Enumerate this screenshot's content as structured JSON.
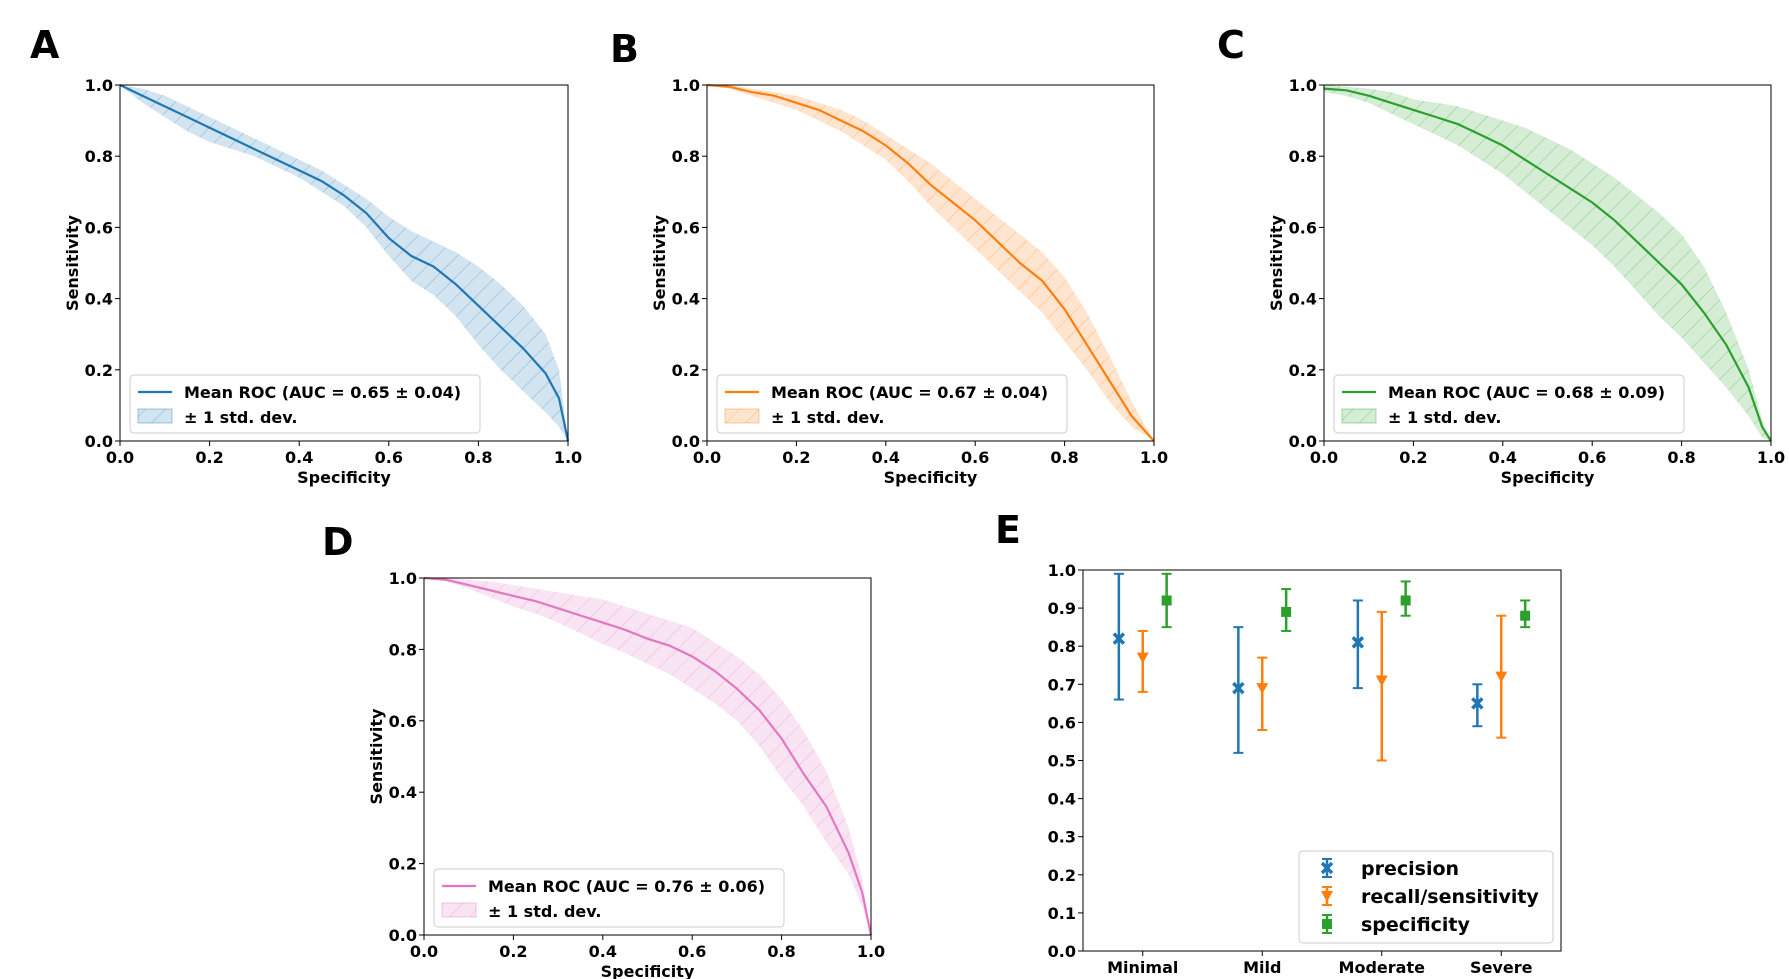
{
  "chart_data": [
    {
      "panel": "A",
      "type": "line",
      "xlabel": "Specificity",
      "ylabel": "Sensitivity",
      "xlim": [
        0,
        1
      ],
      "ylim": [
        0,
        1
      ],
      "xticks": [
        "0.0",
        "0.2",
        "0.4",
        "0.6",
        "0.8",
        "1.0"
      ],
      "yticks": [
        "0.0",
        "0.2",
        "0.4",
        "0.6",
        "0.8",
        "1.0"
      ],
      "grid": false,
      "legend_position": "lower-left",
      "color": "#1f77b4",
      "series": [
        {
          "name": "Mean ROC (AUC = 0.65 ± 0.04)",
          "x": [
            0,
            0.05,
            0.1,
            0.15,
            0.2,
            0.25,
            0.3,
            0.35,
            0.4,
            0.45,
            0.5,
            0.55,
            0.6,
            0.65,
            0.7,
            0.75,
            0.8,
            0.85,
            0.9,
            0.95,
            0.98,
            1.0
          ],
          "y": [
            1.0,
            0.97,
            0.94,
            0.91,
            0.88,
            0.85,
            0.82,
            0.79,
            0.76,
            0.73,
            0.69,
            0.64,
            0.57,
            0.52,
            0.49,
            0.44,
            0.38,
            0.32,
            0.26,
            0.19,
            0.12,
            0.0
          ],
          "std_label": "± 1 std. dev.",
          "upper": [
            1.0,
            0.99,
            0.97,
            0.94,
            0.91,
            0.88,
            0.85,
            0.82,
            0.79,
            0.76,
            0.72,
            0.68,
            0.63,
            0.59,
            0.56,
            0.53,
            0.49,
            0.44,
            0.38,
            0.3,
            0.2,
            0.0
          ],
          "lower": [
            1.0,
            0.95,
            0.91,
            0.87,
            0.84,
            0.82,
            0.8,
            0.77,
            0.74,
            0.7,
            0.66,
            0.6,
            0.52,
            0.45,
            0.41,
            0.35,
            0.27,
            0.2,
            0.14,
            0.08,
            0.04,
            0.0
          ]
        }
      ]
    },
    {
      "panel": "B",
      "type": "line",
      "xlabel": "Specificity",
      "ylabel": "Sensitivity",
      "xlim": [
        0,
        1
      ],
      "ylim": [
        0,
        1
      ],
      "xticks": [
        "0.0",
        "0.2",
        "0.4",
        "0.6",
        "0.8",
        "1.0"
      ],
      "yticks": [
        "0.0",
        "0.2",
        "0.4",
        "0.6",
        "0.8",
        "1.0"
      ],
      "grid": false,
      "legend_position": "lower-left",
      "color": "#ff7f0e",
      "series": [
        {
          "name": "Mean ROC (AUC = 0.67 ± 0.04)",
          "x": [
            0,
            0.05,
            0.1,
            0.15,
            0.2,
            0.25,
            0.3,
            0.35,
            0.4,
            0.45,
            0.5,
            0.55,
            0.6,
            0.65,
            0.7,
            0.75,
            0.8,
            0.85,
            0.9,
            0.95,
            1.0
          ],
          "y": [
            1.0,
            0.995,
            0.98,
            0.97,
            0.95,
            0.93,
            0.9,
            0.87,
            0.83,
            0.78,
            0.72,
            0.67,
            0.62,
            0.56,
            0.5,
            0.45,
            0.37,
            0.27,
            0.17,
            0.07,
            0.0
          ],
          "std_label": "± 1 std. dev.",
          "upper": [
            1.0,
            1.0,
            0.99,
            0.98,
            0.97,
            0.95,
            0.93,
            0.9,
            0.86,
            0.82,
            0.78,
            0.73,
            0.68,
            0.63,
            0.58,
            0.53,
            0.46,
            0.36,
            0.24,
            0.11,
            0.0
          ],
          "lower": [
            1.0,
            0.99,
            0.97,
            0.95,
            0.93,
            0.9,
            0.87,
            0.83,
            0.79,
            0.73,
            0.66,
            0.6,
            0.54,
            0.48,
            0.42,
            0.36,
            0.28,
            0.2,
            0.11,
            0.04,
            0.0
          ]
        }
      ]
    },
    {
      "panel": "C",
      "type": "line",
      "xlabel": "Specificity",
      "ylabel": "Sensitivity",
      "xlim": [
        0,
        1
      ],
      "ylim": [
        0,
        1
      ],
      "xticks": [
        "0.0",
        "0.2",
        "0.4",
        "0.6",
        "0.8",
        "1.0"
      ],
      "yticks": [
        "0.0",
        "0.2",
        "0.4",
        "0.6",
        "0.8",
        "1.0"
      ],
      "grid": false,
      "legend_position": "lower-left",
      "color": "#2ca02c",
      "series": [
        {
          "name": "Mean ROC (AUC = 0.68 ± 0.09)",
          "x": [
            0,
            0.05,
            0.1,
            0.15,
            0.2,
            0.25,
            0.3,
            0.35,
            0.4,
            0.45,
            0.5,
            0.55,
            0.6,
            0.65,
            0.7,
            0.75,
            0.8,
            0.85,
            0.9,
            0.95,
            0.98,
            1.0
          ],
          "y": [
            0.99,
            0.985,
            0.97,
            0.95,
            0.93,
            0.91,
            0.89,
            0.86,
            0.83,
            0.79,
            0.75,
            0.71,
            0.67,
            0.62,
            0.56,
            0.5,
            0.44,
            0.36,
            0.27,
            0.15,
            0.04,
            0.0
          ],
          "std_label": "± 1 std. dev.",
          "upper": [
            1.0,
            0.995,
            0.99,
            0.98,
            0.96,
            0.95,
            0.94,
            0.92,
            0.9,
            0.88,
            0.85,
            0.82,
            0.78,
            0.74,
            0.69,
            0.64,
            0.58,
            0.49,
            0.36,
            0.2,
            0.06,
            0.0
          ],
          "lower": [
            0.98,
            0.97,
            0.95,
            0.92,
            0.89,
            0.86,
            0.83,
            0.79,
            0.75,
            0.7,
            0.65,
            0.6,
            0.55,
            0.49,
            0.42,
            0.35,
            0.29,
            0.22,
            0.15,
            0.07,
            0.01,
            0.0
          ]
        }
      ]
    },
    {
      "panel": "D",
      "type": "line",
      "xlabel": "Specificity",
      "ylabel": "Sensitivity",
      "xlim": [
        0,
        1
      ],
      "ylim": [
        0,
        1
      ],
      "xticks": [
        "0.0",
        "0.2",
        "0.4",
        "0.6",
        "0.8",
        "1.0"
      ],
      "yticks": [
        "0.0",
        "0.2",
        "0.4",
        "0.6",
        "0.8",
        "1.0"
      ],
      "grid": false,
      "legend_position": "lower-left",
      "color": "#e377c2",
      "series": [
        {
          "name": "Mean ROC (AUC = 0.76 ± 0.06)",
          "x": [
            0,
            0.05,
            0.1,
            0.15,
            0.2,
            0.25,
            0.3,
            0.35,
            0.4,
            0.45,
            0.5,
            0.55,
            0.6,
            0.65,
            0.7,
            0.75,
            0.8,
            0.85,
            0.9,
            0.95,
            0.98,
            1.0
          ],
          "y": [
            1.0,
            0.995,
            0.98,
            0.965,
            0.95,
            0.935,
            0.915,
            0.895,
            0.875,
            0.855,
            0.83,
            0.81,
            0.78,
            0.74,
            0.69,
            0.63,
            0.55,
            0.45,
            0.36,
            0.23,
            0.12,
            0.0
          ],
          "std_label": "± 1 std. dev.",
          "upper": [
            1.0,
            1.0,
            0.995,
            0.99,
            0.98,
            0.97,
            0.96,
            0.95,
            0.94,
            0.92,
            0.9,
            0.88,
            0.86,
            0.82,
            0.78,
            0.73,
            0.66,
            0.57,
            0.46,
            0.3,
            0.16,
            0.0
          ],
          "lower": [
            1.0,
            0.99,
            0.97,
            0.945,
            0.92,
            0.9,
            0.875,
            0.845,
            0.815,
            0.79,
            0.76,
            0.73,
            0.69,
            0.65,
            0.6,
            0.53,
            0.44,
            0.36,
            0.26,
            0.17,
            0.08,
            0.0
          ]
        }
      ]
    },
    {
      "panel": "E",
      "type": "scatter",
      "categories": [
        "Minimal",
        "Mild",
        "Moderate",
        "Severe"
      ],
      "ylim": [
        0,
        1.0
      ],
      "yticks": [
        "0.0",
        "0.1",
        "0.2",
        "0.3",
        "0.4",
        "0.5",
        "0.6",
        "0.7",
        "0.8",
        "0.9",
        "1.0"
      ],
      "grid": false,
      "legend_position": "lower-right",
      "series": [
        {
          "name": "precision",
          "color": "#1f77b4",
          "marker": "X",
          "values": [
            0.82,
            0.69,
            0.81,
            0.65
          ],
          "lower": [
            0.66,
            0.52,
            0.69,
            0.59
          ],
          "upper": [
            0.99,
            0.85,
            0.92,
            0.7
          ]
        },
        {
          "name": "recall/sensitivity",
          "color": "#ff7f0e",
          "marker": "v",
          "values": [
            0.77,
            0.69,
            0.71,
            0.72
          ],
          "lower": [
            0.68,
            0.58,
            0.5,
            0.56
          ],
          "upper": [
            0.84,
            0.77,
            0.89,
            0.88
          ]
        },
        {
          "name": "specificity",
          "color": "#2ca02c",
          "marker": "s",
          "values": [
            0.92,
            0.89,
            0.92,
            0.88
          ],
          "lower": [
            0.85,
            0.84,
            0.88,
            0.85
          ],
          "upper": [
            0.99,
            0.95,
            0.97,
            0.92
          ]
        }
      ]
    }
  ]
}
